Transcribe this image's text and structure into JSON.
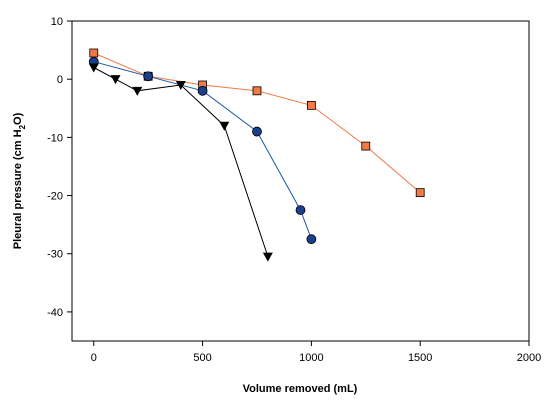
{
  "chart_data": {
    "type": "scatter",
    "title": "",
    "xlabel": "Volume removed (mL)",
    "ylabel": "Pleural pressure (cm H",
    "ylabel_sub": "2",
    "ylabel_end": "O)",
    "xlim": [
      -100,
      2000
    ],
    "ylim": [
      -45,
      10
    ],
    "xticks": [
      0,
      500,
      1000,
      1500,
      2000
    ],
    "yticks": [
      10,
      0,
      -10,
      -20,
      -30,
      -40
    ],
    "xtick_labels": [
      "0",
      "500",
      "1000",
      "1500",
      "2000"
    ],
    "ytick_labels": [
      "10",
      "0",
      "-10",
      "-20",
      "-30",
      "-40"
    ],
    "grid": false,
    "legend": "none",
    "series": [
      {
        "marker": "square",
        "color": "#f07a45",
        "line_color": "#f07a45",
        "points": [
          [
            0,
            4.5
          ],
          [
            250,
            0.5
          ],
          [
            500,
            -1
          ],
          [
            750,
            -2
          ],
          [
            1000,
            -4.5
          ],
          [
            1250,
            -11.5
          ],
          [
            1500,
            -19.5
          ]
        ]
      },
      {
        "marker": "circle",
        "color": "#1a3f8f",
        "line_color": "#1a5aa8",
        "points": [
          [
            0,
            3
          ],
          [
            250,
            0.5
          ],
          [
            500,
            -2
          ],
          [
            750,
            -9
          ],
          [
            950,
            -22.5
          ],
          [
            1000,
            -27.5
          ]
        ]
      },
      {
        "marker": "triangle-down",
        "color": "#000000",
        "line_color": "#000000",
        "points": [
          [
            0,
            2
          ],
          [
            100,
            0
          ],
          [
            200,
            -2
          ],
          [
            400,
            -1
          ],
          [
            600,
            -8
          ],
          [
            800,
            -30.5
          ]
        ]
      }
    ]
  }
}
